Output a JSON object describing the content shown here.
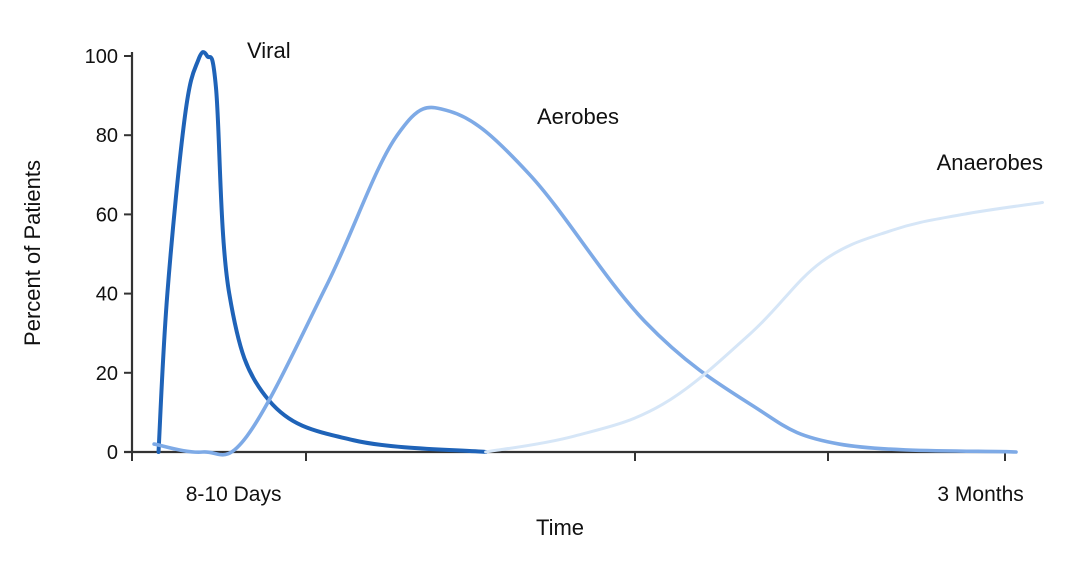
{
  "chart_data": {
    "type": "line",
    "xlabel": "Time",
    "ylabel": "Percent of Patients",
    "ylim": [
      0,
      100
    ],
    "yticks": [
      0,
      20,
      40,
      60,
      80,
      100
    ],
    "xlim": [
      0,
      1
    ],
    "x_category_labels": [
      {
        "text": "8-10 Days",
        "x": 0.055
      },
      {
        "text": "3 Months",
        "x": 0.9
      }
    ],
    "grid": false,
    "legend": "none",
    "series": [
      {
        "name": "Viral",
        "color": "#1f63b8",
        "x": [
          0.03,
          0.04,
          0.06,
          0.075,
          0.085,
          0.095,
          0.11,
          0.155,
          0.25,
          0.4
        ],
        "y": [
          0,
          40,
          85,
          99,
          100,
          92,
          40,
          13,
          3,
          0
        ]
      },
      {
        "name": "Aerobes",
        "color": "#7eaae6",
        "x": [
          0.025,
          0.08,
          0.13,
          0.22,
          0.3,
          0.36,
          0.45,
          0.58,
          0.7,
          0.8,
          1.0
        ],
        "y": [
          2,
          0,
          4,
          42,
          80,
          86,
          70,
          33,
          12,
          2,
          0
        ]
      },
      {
        "name": "Anaerobes",
        "color": "#d6e6f7",
        "x": [
          0.4,
          0.5,
          0.6,
          0.7,
          0.78,
          0.86,
          0.94,
          1.03
        ],
        "y": [
          0,
          4,
          12,
          30,
          48,
          56,
          60,
          63
        ]
      }
    ]
  }
}
